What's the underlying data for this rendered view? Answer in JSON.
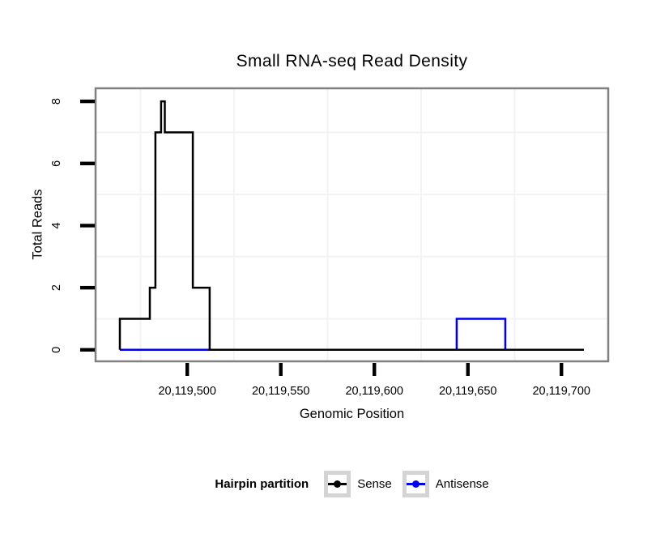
{
  "title": "Small RNA-seq Read Density",
  "legend": {
    "title": "Hairpin partition",
    "items": [
      {
        "label": "Sense",
        "color": "#000000"
      },
      {
        "label": "Antisense",
        "color": "#0000EE"
      }
    ]
  },
  "colors": {
    "panel_border": "#808080",
    "minor_gridline": "#f3f3f3",
    "tick_mark": "#000000",
    "legend_key_border": "#d4d4d4",
    "sense": "#000000",
    "antisense": "#0000EE"
  },
  "chart_data": {
    "type": "line",
    "subtype": "step",
    "title": "Small RNA-seq Read Density",
    "xlabel": "Genomic Position",
    "ylabel": "Total Reads",
    "x_tick_values": [
      20119500,
      20119550,
      20119600,
      20119650,
      20119700
    ],
    "x_tick_labels": [
      "20,119,500",
      "20,119,550",
      "20,119,600",
      "20,119,650",
      "20,119,700"
    ],
    "y_tick_values": [
      0,
      2,
      4,
      6,
      8
    ],
    "y_tick_labels": [
      "0",
      "2",
      "4",
      "6",
      "8"
    ],
    "xlim": [
      20119451,
      20119725
    ],
    "ylim": [
      -0.37,
      8.42
    ],
    "x_minor_gridlines": [
      20119475,
      20119525,
      20119575,
      20119625,
      20119675
    ],
    "y_minor_gridlines": [
      1,
      3,
      5,
      7
    ],
    "grid": "minor-only",
    "legend_position": "bottom",
    "series": [
      {
        "name": "Antisense",
        "color": "#0000EE",
        "points": [
          [
            20119464,
            0
          ],
          [
            20119644,
            0
          ],
          [
            20119644,
            1
          ],
          [
            20119670,
            1
          ],
          [
            20119670,
            0
          ],
          [
            20119712,
            0
          ]
        ]
      },
      {
        "name": "Sense",
        "color": "#000000",
        "points": [
          [
            20119464,
            0
          ],
          [
            20119464,
            1
          ],
          [
            20119480,
            1
          ],
          [
            20119480,
            2
          ],
          [
            20119483,
            2
          ],
          [
            20119483,
            7
          ],
          [
            20119486,
            7
          ],
          [
            20119486,
            8
          ],
          [
            20119488,
            8
          ],
          [
            20119488,
            7
          ],
          [
            20119503,
            7
          ],
          [
            20119503,
            2
          ],
          [
            20119512,
            2
          ],
          [
            20119512,
            0
          ],
          [
            20119712,
            0
          ]
        ]
      }
    ]
  }
}
